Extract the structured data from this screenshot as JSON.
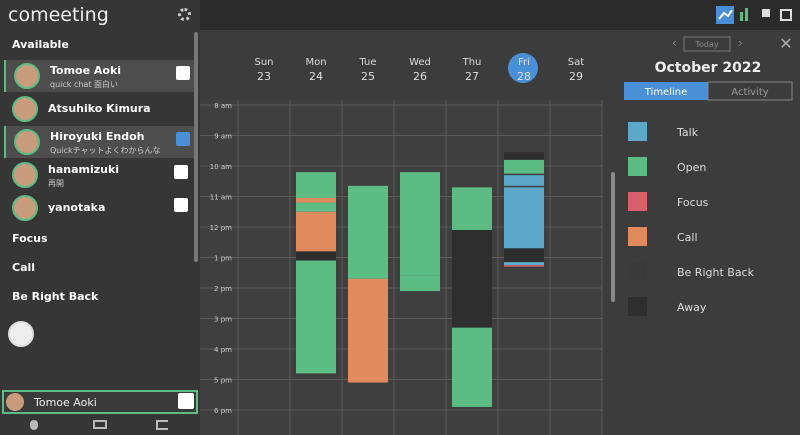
{
  "app": {
    "title": "comeeting"
  },
  "sidebar": {
    "sections": [
      {
        "title": "Available",
        "users": [
          {
            "name": "Tomoe Aoki",
            "status": "quick chat 面白い"
          },
          {
            "name": "Atsuhiko Kimura"
          },
          {
            "name": "Hiroyuki Endoh",
            "status": "Quickチャットよくわからんな"
          },
          {
            "name": "hanamizuki",
            "status": "再開"
          },
          {
            "name": "yanotaka"
          }
        ]
      },
      {
        "title": "Focus"
      },
      {
        "title": "Call"
      },
      {
        "title": "Be Right Back"
      }
    ],
    "current_user": "Tomoe Aoki"
  },
  "calendar": {
    "month": "October 2022",
    "today_button": "Today",
    "tabs": [
      "Timeline",
      "Activity"
    ],
    "hours": [
      {
        "value": 8,
        "label": "8 am"
      },
      {
        "value": 9,
        "label": "9 am"
      },
      {
        "value": 10,
        "label": "10 am"
      },
      {
        "value": 11,
        "label": "11 am"
      },
      {
        "value": 12,
        "label": "12 pm"
      },
      {
        "value": 13,
        "label": "1 pm"
      },
      {
        "value": 14,
        "label": "2 pm"
      },
      {
        "value": 15,
        "label": "3 pm"
      },
      {
        "value": 16,
        "label": "4 pm"
      },
      {
        "value": 17,
        "label": "5 pm"
      },
      {
        "value": 18,
        "label": "6 pm"
      }
    ],
    "days": [
      {
        "weekday": "Sun",
        "date": "23",
        "segments": []
      },
      {
        "weekday": "Mon",
        "date": "24",
        "segments": [
          {
            "color": "#5dbb84",
            "start": 10.2,
            "end": 11.05
          },
          {
            "color": "#e08a5e",
            "start": 11.05,
            "end": 11.2
          },
          {
            "color": "#5dbb84",
            "start": 11.2,
            "end": 11.5
          },
          {
            "color": "#e08a5e",
            "start": 11.5,
            "end": 12.8
          },
          {
            "color": "#2e2e2e",
            "start": 12.8,
            "end": 13.1
          },
          {
            "color": "#5dbb84",
            "start": 13.1,
            "end": 16.8
          }
        ]
      },
      {
        "weekday": "Tue",
        "date": "25",
        "segments": [
          {
            "color": "#5dbb84",
            "start": 10.65,
            "end": 13.7
          },
          {
            "color": "#e08a5e",
            "start": 13.7,
            "end": 17.1
          }
        ]
      },
      {
        "weekday": "Wed",
        "date": "26",
        "segments": [
          {
            "color": "#5dbb84",
            "start": 10.2,
            "end": 13.6
          },
          {
            "color": "#5dbb84",
            "start": 13.6,
            "end": 14.1
          }
        ]
      },
      {
        "weekday": "Thu",
        "date": "27",
        "segments": [
          {
            "color": "#5dbb84",
            "start": 10.7,
            "end": 12.1
          },
          {
            "color": "#2e2e2e",
            "start": 12.1,
            "end": 15.3
          },
          {
            "color": "#5dbb84",
            "start": 15.3,
            "end": 17.9
          }
        ]
      },
      {
        "weekday": "Fri",
        "date": "28",
        "selected": true,
        "segments": [
          {
            "color": "#2e2e2e",
            "start": 9.55,
            "end": 9.8
          },
          {
            "color": "#5dbb84",
            "start": 9.8,
            "end": 10.25
          },
          {
            "color": "#5ba8c8",
            "start": 10.3,
            "end": 10.65
          },
          {
            "color": "#5ba8c8",
            "start": 10.7,
            "end": 12.7
          },
          {
            "color": "#2e2e2e",
            "start": 12.7,
            "end": 13.15
          },
          {
            "color": "#5ba8c8",
            "start": 13.15,
            "end": 13.25
          },
          {
            "color": "#d9606a",
            "start": 13.25,
            "end": 13.3
          }
        ]
      },
      {
        "weekday": "Sat",
        "date": "29",
        "segments": []
      }
    ],
    "legend": [
      {
        "label": "Talk",
        "color": "#5ba8c8"
      },
      {
        "label": "Open",
        "color": "#5dbb84"
      },
      {
        "label": "Focus",
        "color": "#d9606a"
      },
      {
        "label": "Call",
        "color": "#e08a5e"
      },
      {
        "label": "Be Right Back",
        "color": "#3a3a3a"
      },
      {
        "label": "Away",
        "color": "#2e2e2e"
      }
    ]
  }
}
